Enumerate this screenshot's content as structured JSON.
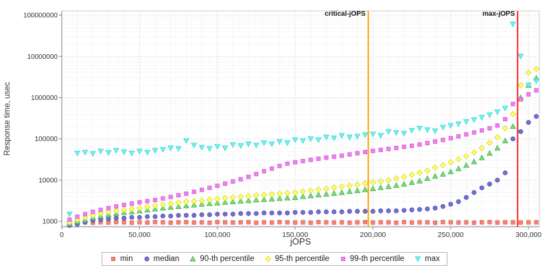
{
  "chart_data": {
    "type": "scatter",
    "title": "",
    "xlabel": "jOPS",
    "ylabel": "Response time, usec",
    "y_scale": "log",
    "grid": true,
    "legend_position": "bottom",
    "xlim": [
      0,
      307000
    ],
    "ylim_log": [
      2.87,
      8.1
    ],
    "x_ticks": [
      0,
      50000,
      100000,
      150000,
      200000,
      250000,
      300000
    ],
    "x_tick_labels": [
      "0",
      "50,000",
      "100,000",
      "150,000",
      "200,000",
      "250,000",
      "300,000"
    ],
    "y_ticks": [
      1000,
      10000,
      100000,
      1000000,
      10000000,
      100000000
    ],
    "y_tick_labels": [
      "1000",
      "10000",
      "100000",
      "1000000",
      "10000000",
      "100000000"
    ],
    "annotations": [
      {
        "label": "critical-jOPS",
        "x": 197000,
        "color": "#FFA500"
      },
      {
        "label": "max-jOPS",
        "x": 293000,
        "color": "#FF2222"
      }
    ],
    "colors": {
      "grid_major": "#c9c9c9",
      "grid_minor": "#e4e4e4",
      "axis": "#808080",
      "frame": "#cccccc",
      "text": "#333333",
      "background": "#ffffff"
    },
    "x": [
      5000,
      10000,
      15000,
      20000,
      25000,
      30000,
      35000,
      40000,
      45000,
      50000,
      55000,
      60000,
      65000,
      70000,
      75000,
      80000,
      85000,
      90000,
      95000,
      100000,
      105000,
      110000,
      115000,
      120000,
      125000,
      130000,
      135000,
      140000,
      145000,
      150000,
      155000,
      160000,
      165000,
      170000,
      175000,
      180000,
      185000,
      190000,
      195000,
      200000,
      205000,
      210000,
      215000,
      220000,
      225000,
      230000,
      235000,
      240000,
      245000,
      250000,
      255000,
      260000,
      265000,
      270000,
      275000,
      280000,
      285000,
      290000,
      295000,
      300000,
      305000
    ],
    "series": [
      {
        "name": "min",
        "marker": "square",
        "color": "#FA8072",
        "edge": "#D9604F",
        "values": [
          950,
          920,
          960,
          930,
          950,
          940,
          960,
          950,
          930,
          950,
          940,
          960,
          950,
          930,
          950,
          960,
          940,
          950,
          930,
          960,
          950,
          940,
          950,
          960,
          930,
          950,
          940,
          960,
          950,
          940,
          950,
          930,
          960,
          950,
          940,
          950,
          930,
          950,
          960,
          940,
          950,
          950,
          930,
          960,
          940,
          950,
          950,
          930,
          960,
          950,
          940,
          950,
          930,
          950,
          960,
          940,
          950,
          950,
          940,
          950,
          950
        ]
      },
      {
        "name": "median",
        "marker": "circle",
        "color": "#7070D0",
        "edge": "#5050B0",
        "values": [
          800,
          850,
          950,
          1050,
          1100,
          1150,
          1200,
          1200,
          1250,
          1250,
          1300,
          1300,
          1350,
          1350,
          1400,
          1400,
          1400,
          1450,
          1450,
          1500,
          1500,
          1500,
          1550,
          1550,
          1550,
          1600,
          1600,
          1600,
          1600,
          1650,
          1650,
          1650,
          1700,
          1700,
          1700,
          1700,
          1750,
          1750,
          1750,
          1750,
          1800,
          1800,
          1800,
          1850,
          1900,
          1950,
          2000,
          2100,
          2300,
          2600,
          3000,
          3800,
          5000,
          6500,
          8000,
          10000,
          15000,
          100000,
          150000,
          250000,
          350000
        ]
      },
      {
        "name": "90-th percentile",
        "marker": "triangle-up",
        "color": "#77DD77",
        "edge": "#4CAF50",
        "values": [
          900,
          1000,
          1100,
          1250,
          1350,
          1450,
          1550,
          1650,
          1700,
          1800,
          1900,
          2000,
          2100,
          2200,
          2300,
          2400,
          2500,
          2600,
          2700,
          2800,
          2900,
          3000,
          3100,
          3200,
          3300,
          3400,
          3500,
          3600,
          3700,
          3800,
          4000,
          4200,
          4400,
          4600,
          4800,
          5000,
          5300,
          5600,
          5900,
          6200,
          6600,
          7000,
          7500,
          8000,
          8800,
          9600,
          11000,
          12500,
          14000,
          16000,
          19000,
          23000,
          28000,
          35000,
          45000,
          60000,
          90000,
          200000,
          1000000,
          2000000,
          3000000
        ]
      },
      {
        "name": "95-th percentile",
        "marker": "diamond",
        "color": "#FFFF66",
        "edge": "#D6D631",
        "values": [
          950,
          1100,
          1250,
          1400,
          1550,
          1700,
          1800,
          1900,
          2000,
          2100,
          2250,
          2400,
          2550,
          2700,
          2850,
          3000,
          3100,
          3200,
          3350,
          3500,
          3650,
          3800,
          3950,
          4100,
          4250,
          4400,
          4550,
          4700,
          4850,
          5000,
          5300,
          5600,
          5900,
          6200,
          6600,
          7000,
          7400,
          7800,
          8300,
          8800,
          9400,
          10000,
          11000,
          12000,
          13500,
          15000,
          17000,
          20000,
          23000,
          27000,
          32000,
          38000,
          47000,
          60000,
          80000,
          110000,
          180000,
          400000,
          2000000,
          4000000,
          5000000
        ]
      },
      {
        "name": "99-th percentile",
        "marker": "square",
        "color": "#F47EF4",
        "edge": "#D455D4",
        "values": [
          1100,
          1300,
          1500,
          1700,
          1900,
          2100,
          2300,
          2500,
          2700,
          2900,
          3100,
          3300,
          3600,
          3900,
          4300,
          4700,
          5200,
          5800,
          6500,
          7300,
          8200,
          9300,
          10500,
          12000,
          14000,
          16500,
          19000,
          22000,
          25000,
          27000,
          29000,
          31000,
          33000,
          35000,
          37000,
          39000,
          42000,
          45000,
          48000,
          51000,
          54000,
          57000,
          60000,
          64000,
          68000,
          73000,
          79000,
          86000,
          94000,
          104000,
          115000,
          128000,
          143000,
          160000,
          180000,
          210000,
          300000,
          700000,
          900000,
          1200000,
          1500000
        ]
      },
      {
        "name": "max",
        "marker": "triangle-down",
        "color": "#70F2F2",
        "edge": "#3FD4D4",
        "values": [
          1500,
          45000,
          47000,
          44000,
          50000,
          46000,
          52000,
          48000,
          45000,
          50000,
          47000,
          52000,
          55000,
          60000,
          58000,
          90000,
          70000,
          62000,
          58000,
          65000,
          60000,
          72000,
          68000,
          75000,
          70000,
          80000,
          75000,
          85000,
          80000,
          95000,
          90000,
          100000,
          95000,
          110000,
          105000,
          120000,
          110000,
          115000,
          125000,
          130000,
          120000,
          150000,
          140000,
          135000,
          160000,
          180000,
          165000,
          155000,
          190000,
          210000,
          230000,
          260000,
          290000,
          330000,
          380000,
          450000,
          550000,
          60000000,
          10000000,
          2000000,
          2500000
        ]
      }
    ]
  }
}
